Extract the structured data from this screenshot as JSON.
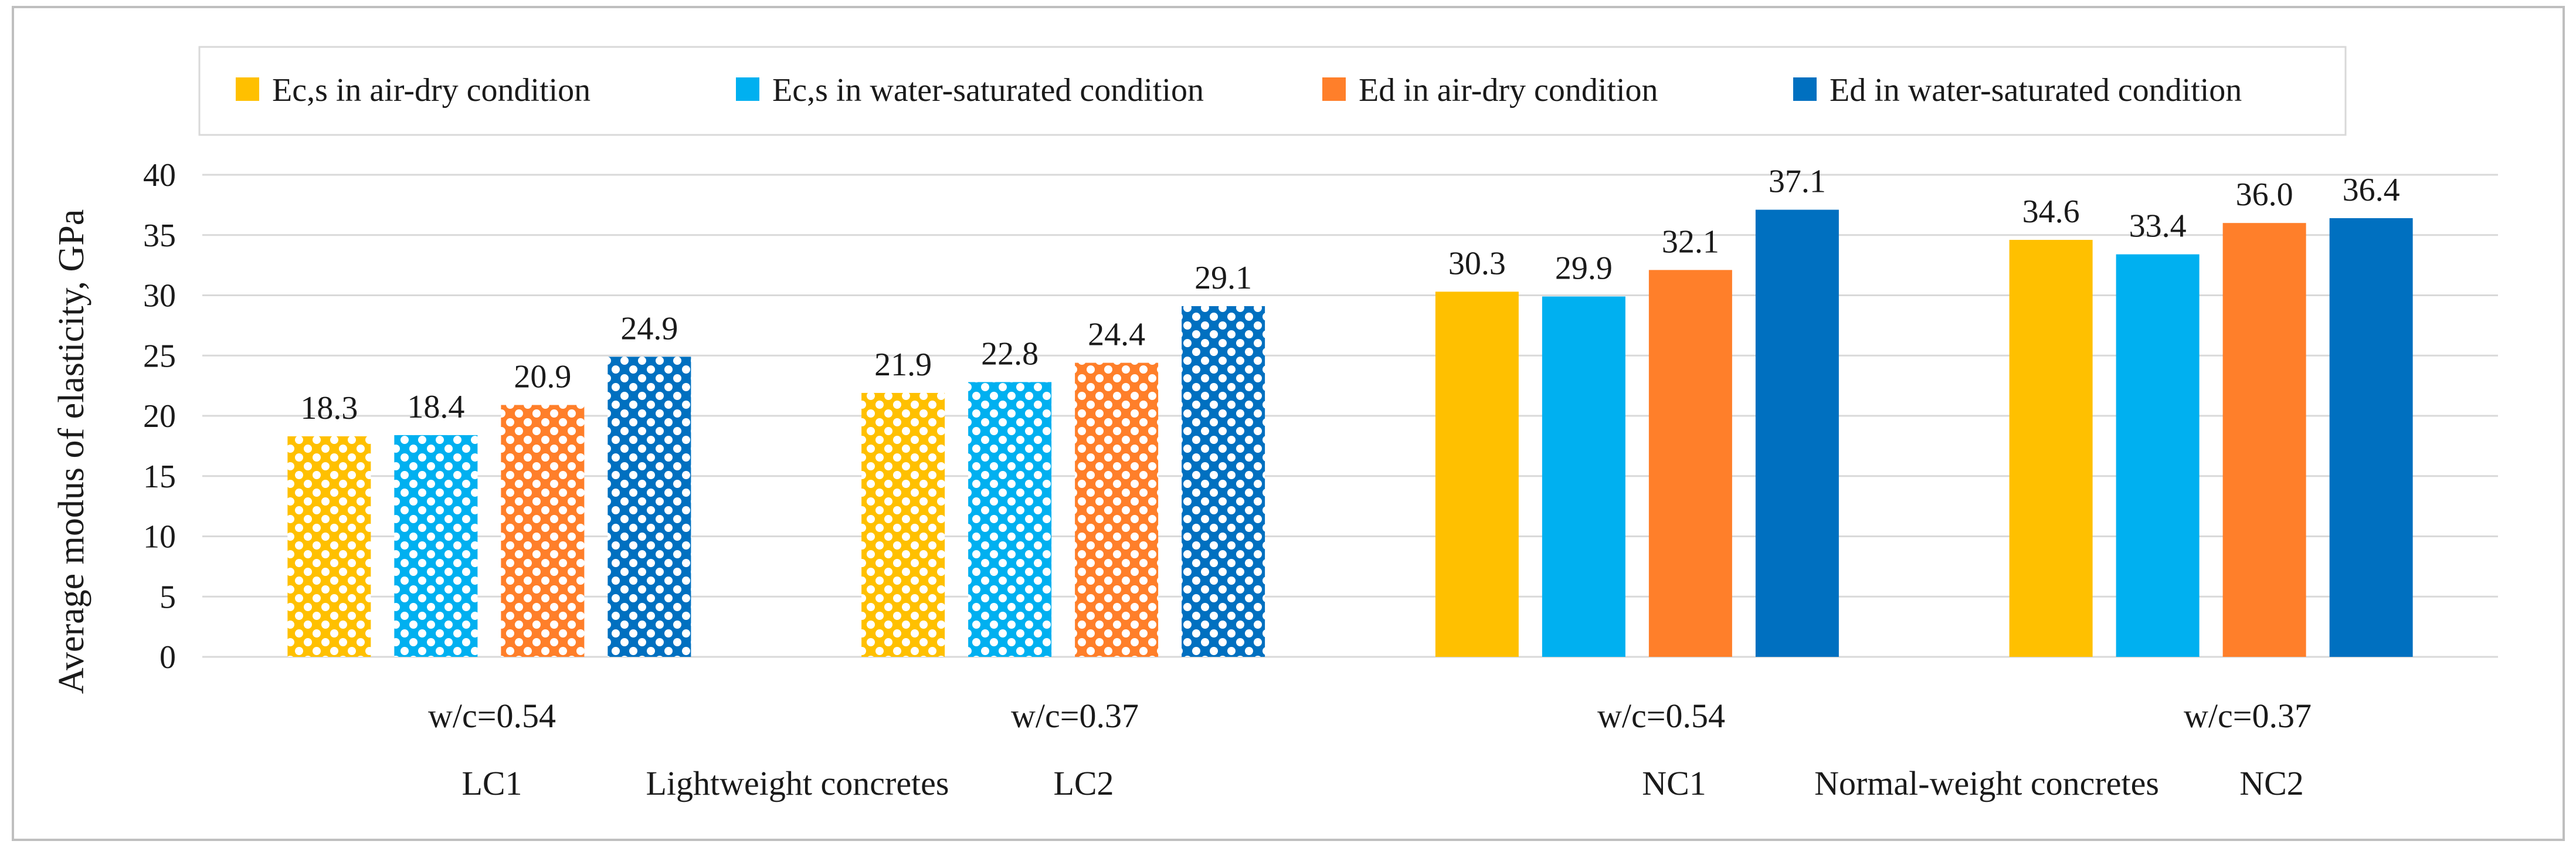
{
  "chart_data": {
    "type": "bar",
    "ylabel": "Average modus of elasticity, GPa",
    "ylim": [
      0,
      40
    ],
    "yticks": [
      "0",
      "5",
      "10",
      "15",
      "20",
      "25",
      "30",
      "35",
      "40"
    ],
    "grid": true,
    "legend_position": "top",
    "categories": [
      "w/c=0.54",
      "w/c=0.37",
      "w/c=0.54",
      "w/c=0.37"
    ],
    "group_labels": [
      "LC1",
      "LC2",
      "NC1",
      "NC2"
    ],
    "family_labels": [
      "Lightweight concretes",
      "Normal-weight concretes"
    ],
    "series": [
      {
        "name": "Ec,s in air-dry condition",
        "color": "#FFC000",
        "values": [
          18.3,
          21.9,
          30.3,
          34.6
        ],
        "labels": [
          "18.3",
          "21.9",
          "30.3",
          "34.6"
        ]
      },
      {
        "name": "Ec,s in water-saturated condition",
        "color": "#00B0F0",
        "values": [
          18.4,
          22.8,
          29.9,
          33.4
        ],
        "labels": [
          "18.4",
          "22.8",
          "29.9",
          "33.4"
        ]
      },
      {
        "name": "Ed in air-dry condition",
        "color": "#FF7F2A",
        "values": [
          20.9,
          24.4,
          32.1,
          36.0
        ],
        "labels": [
          "20.9",
          "24.4",
          "32.1",
          "36.0"
        ]
      },
      {
        "name": "Ed in water-saturated condition",
        "color": "#0070C0",
        "values": [
          24.9,
          29.1,
          37.1,
          36.4
        ],
        "labels": [
          "24.9",
          "29.1",
          "37.1",
          "36.4"
        ]
      }
    ],
    "patterned_groups": [
      true,
      true,
      false,
      false
    ]
  }
}
